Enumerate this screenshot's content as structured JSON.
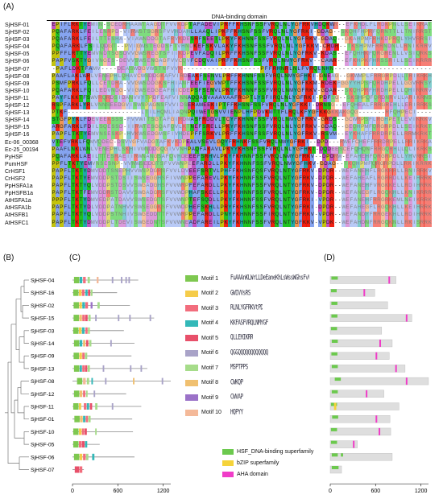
{
  "panels": {
    "a": "(A)",
    "b": "(B)",
    "c": "(C)",
    "d": "(D)"
  },
  "alignment": {
    "title": "DNA-binding domain",
    "names": [
      "SjHSF-01",
      "SjHSF-02",
      "SjHSF-03",
      "SjHSF-04",
      "SjHSF-05",
      "SjHSF-06",
      "SjHSF-07",
      "SjHSF-08",
      "SjHSF-09",
      "SjHSF-10",
      "SjHSF-11",
      "SjHSF-12",
      "SjHSF-13",
      "SjHSF-14",
      "SjHSF-15",
      "SjHSF-16",
      "Ec-06_00368",
      "Ec-25_00194",
      "PyHSF",
      "PumHSF",
      "CrHSF1",
      "CrHSF2",
      "PpHSFA1a",
      "PpHSFB1a",
      "AtHSFA1a",
      "AtHSFA1b",
      "AtHSFB1",
      "AtHSFC1"
    ],
    "sequences": [
      "EPIFLRKTYEMIN-SCEDRHAAWTAAGDTFVVKDPTAFADEVIPRFFKHSNFSSFVRQLNLYGFRKVHDQKWR--EFKHDLFLRDKPNLLSEIKRAT",
      "PQAFARKLFEILENRPD-VIRWSTSGRSFVVHDAHLLAAQLIPKFFKHSNFSSFVRQLNLYGFRKI-GDAG--SKQHFHPRFQRNTTLLTNIRRST",
      "PQAFARKLFEILTTESHA-VIAWNDDGTAFRVKDESRFSEETLPKYFKHNNFSSFVRQLNLYGFRKV-GDAQ--GKAHPMFRHKDPRQLYHVRRSI",
      "PQAFARKLFSILQDGT--PVIGWSTEGDSFTVHNDKEFSKVLAKYFKHSNFSSFVRQLNLYGFKKV-CRDR--TKSHPMFRRNDNLLRNIKRRV",
      "PPFFLRTTYEMVNDTSGSDVVGWSREGTSFIIKDPEVFADQILPRFFKHSNFSSFVRQLNLYGFRKV-KDAS--EFQHHKFQRGRENLLVSIQRKS",
      "PAPFVSKTYGIVNGES-DEVVSWSENGAGFVVCQVFCDQVAIPRFFKHSNFSSFVRQLNMYGFRKV--CAWR--EFKHPKFHRSSRILLSEIKRRR",
      "-PAFLDKTFAMV----DEASWDGVWSTNFVVK-------------------PFFRHNRLNLFVRQLNHN------------------------",
      "PAAFLAKLWRLVENEPHLQHAVCWSDDGKAFVIRDEAKFSENVLPRFFKHNNFSSFVRQLNMYGFHKI-GNEAG--GKWMPLFRRGRPDLLTRIKRKH",
      "PSMFPRKLFQLLCETDRA-VVGWSDDGKSFHIANFEEFIEGVMPTFFKHSNFSSFVRQLNLYGFKKM-RDEKFGGYYHPSFQRDHPELLGGVRRSY",
      "PQAFARKLFQILEDVNDG-VIGWSEDGEAFHICDEPSFSENVLPKYFKHNNFSSFVRQLNMYGFRKV-GDAR--SKQHPRFHRDHPELLQHIRRRV",
      "PAYFLKKTFSWVRQRDSIDANVVYTPDFEAFVINNAQQASVAAAVAAFRGPTLYSFIRQLNLYGFRKI-PDFSG--SKSHPQFQRDNRVLLARIKRNS",
      "RSPFARKLYRLVNNSEEDGVISWSPAGNSFVVIDSERAMEEKIPTFFKHSNFSSFVRQLNLYGFKKI-DRNSG--EFQHEALFRRGREHLLERIRRKS",
      "PTKF-------------------LTILHQMLIAQNPQIWETGSVVIENPLHFPDVKMTTFLRQLKFYGFKKGKKAKGQG-------RFQHPECI----",
      "STGFPYKLFDEVEEKSSS-FVVWITSGTAFGIRDMASFRDDVLTCYFKHNNFSSFVRQLNMYGFRKV-GRDS--GCWRPSFLRGHPETLEVIKRKV",
      "ARGFARKLFDILSQESSD-IIRWTESGQAFQVLKTNEFSRELLPKYFKHSNFSSFVRQLNLYGFRKV-GDAQ--GEQHPMFQRGRPDLLSEIKRKT",
      "PAPFLTKTYEMVNSESKP-HVKWSEDGMSFIVHDEPFFSRKVLPRFFKHSNFSSFVRQLNLYGFRKV-RSVM--EYKHAFFRRDRPELLRRMKRKT",
      "VTEFVRKLFQMVQDEC-DSVVGFVADGTAFKVKDPEALVSEVLGQYFRHNKFSSFVRQLNMYGFRKI--DPD---RWEFCHEFFRRDRPELLRRIKRKA",
      "PAAFLNKLWNLVENEPHLSKHIVWNDDGQGIVVNHPAQFAKAVLPKYYKHSNFSSFVRQLNLYGFHKT-DQDEESCEFQHQNFRRGQRHLLQLIKRKS",
      "PQAFARKLAEILTTESRAEIIRWNANGSAFQVHDEEEFSRHVLPKYFKHNNFSSFVRQLNMYGFRKV--DPDRW-EFAHEHFQRGRPDLLYHVRRSI",
      "PPFLTKTYEMVNSESNP-VVNWSEDGTSFVVWNPEEFARDLLPKYFKHNNFSSFVRQLNMYGFHKV-GDAG--TKQHPMFQRGRPDLLRKIKRRK",
      "PAPFLTKTYDMVDDTSNEPHVVWSPDGRSFVVLDVEEFSRTVLPHFFKHSNFQSFVRQLNTYGFRKV-DPDR--WEFANEHFLRGKRRLLRNIRRKV",
      "PAPFLTKTYEMVDDPSTDSIISWSEGGHSFIVWNPPEFAREVLPKYFKHNNFSSFVRQLNTYGFRKV-DPDR--WEFAHEAFLRGRRDLLKEIHRRK",
      "PAPFLTKTYQLVDDPSTDSVVSWGADGHSFVVWRPFEFARDLLPKYFKHNNFSSFVRQLNTYGFRKV-DPDR--WEFANEHFVRGKKELLRDIHRRK",
      "PAPFLTKTFEMVDDRSTDAVVSWGADGRSFVVWDPHAFSKELLPKYFKHNNFSSFVRQLNTYGFRKV-DPDR--WEFANEGFLRGQKHLLKNIKRRR",
      "PPPFLTKTYDMVEDPATDAVVSWSEDGTSFVVWNPTEFSQDLLPKYFKHNNFSSFVRQLNTYGFRKI-VPDR--WEFANEHFRRGRKEMLNEIKRRK",
      "PAPFLTKTYDLVDDPATNHVVSWSEGGKSFVVWDPHEFSKHLLPRYFKHSNFSSFVRQLNTYGFRKI-DPDR--WEFAHEGFLRGQKHLLKEIHRRK",
      "PAPFLTKTYQLVDDPSTNHIVSWGEDDTTFVVWRPPEFARDLLPNYFKHNNFSSFIRQLNTYGFRKV-VPDR--WEFANDYFRRGEKHLLRDIHRRK",
      "PAPFLTKTYDMVDDPLTDEVISWGEDNTSFVVWNEADFAREILPKYFKHNNFSSFVRQLNTYGFKKV-VPDK--WEFAHDNFRRGQKNLLRKISRRK"
    ]
  },
  "tree": {
    "leaves": [
      "SjHSF-04",
      "SjHSF-16",
      "SjHSF-02",
      "SjHSF-15",
      "SjHSF-03",
      "SjHSF-14",
      "SjHSF-09",
      "SjHSF-13",
      "SjHSF-08",
      "SjHSF-12",
      "SjHSF-11",
      "SjHSF-01",
      "SjHSF-10",
      "SjHSF-05",
      "SjHSF-06",
      "SjHSF-07"
    ]
  },
  "motif_axis": {
    "ticks": [
      "0",
      "600",
      "1200"
    ]
  },
  "domain_axis": {
    "ticks": [
      "0",
      "600",
      "1200"
    ]
  },
  "motif_legend": [
    {
      "label": "Motif 1",
      "color": "#7ec850",
      "logo": "FuAAAnKLWrLLDeEaneKhLsWssWGhsFvVkDp"
    },
    {
      "label": "Motif 2",
      "color": "#f5cc4a",
      "logo": "GWIVVsRS"
    },
    {
      "label": "Motif 3",
      "color": "#f26d7d",
      "logo": "RLNLYGFRKVtPD"
    },
    {
      "label": "Motif 4",
      "color": "#33b8b8",
      "logo": "KKFASFVRQLNMYGF"
    },
    {
      "label": "Motif 5",
      "color": "#e8506a",
      "logo": "QLLEHIKRR"
    },
    {
      "label": "Motif 6",
      "color": "#a9a3c8",
      "logo": "QGGQQQQQQQQQQQQ"
    },
    {
      "label": "Motif 7",
      "color": "#a6dc8a",
      "logo": "MSPTPPS"
    },
    {
      "label": "Motif 8",
      "color": "#f0c070",
      "logo": "CWKQP"
    },
    {
      "label": "Motif 9",
      "color": "#9b72c8",
      "logo": "CWVAP"
    },
    {
      "label": "Motif 10",
      "color": "#f4b999",
      "logo": "HQPYY"
    }
  ],
  "domain_legend": [
    {
      "label": "HSF_DNA-binding superfamily",
      "color": "#6cc94e"
    },
    {
      "label": "bZIP superfamily",
      "color": "#f5d33a"
    },
    {
      "label": "AHA domain",
      "color": "#f03cc8"
    }
  ],
  "proteins": [
    {
      "name": "SjHSF-04",
      "length": 870,
      "motifs": [
        [
          20,
          90,
          1
        ],
        [
          95,
          130,
          4
        ],
        [
          140,
          175,
          3
        ],
        [
          200,
          230,
          7
        ],
        [
          320,
          345,
          10
        ],
        [
          520,
          540,
          6
        ],
        [
          640,
          660,
          6
        ],
        [
          700,
          720,
          6
        ],
        [
          740,
          760,
          6
        ]
      ],
      "domains": [
        [
          15,
          100,
          "HSF_DNA-binding superfamily"
        ],
        [
          770,
          790,
          "AHA domain"
        ]
      ]
    },
    {
      "name": "SjHSF-16",
      "length": 590,
      "motifs": [
        [
          10,
          80,
          1
        ],
        [
          85,
          120,
          2
        ],
        [
          125,
          160,
          3
        ],
        [
          170,
          200,
          4
        ],
        [
          205,
          235,
          5
        ],
        [
          240,
          265,
          7
        ]
      ],
      "domains": [
        [
          10,
          85,
          "HSF_DNA-binding superfamily"
        ],
        [
          440,
          460,
          "AHA domain"
        ]
      ]
    },
    {
      "name": "SjHSF-02",
      "length": 760,
      "motifs": [
        [
          15,
          85,
          1
        ],
        [
          90,
          125,
          2
        ],
        [
          130,
          165,
          4
        ],
        [
          170,
          205,
          3
        ],
        [
          240,
          265,
          9
        ],
        [
          330,
          360,
          7
        ]
      ],
      "domains": [
        [
          15,
          95,
          "HSF_DNA-binding superfamily"
        ]
      ]
    },
    {
      "name": "SjHSF-15",
      "length": 1080,
      "motifs": [
        [
          15,
          85,
          1
        ],
        [
          90,
          125,
          8
        ],
        [
          130,
          165,
          3
        ],
        [
          170,
          200,
          5
        ],
        [
          210,
          240,
          7
        ],
        [
          300,
          320,
          6
        ],
        [
          600,
          620,
          6
        ],
        [
          750,
          770,
          6
        ],
        [
          1020,
          1040,
          6
        ]
      ],
      "domains": [
        [
          15,
          95,
          "HSF_DNA-binding superfamily"
        ],
        [
          1000,
          1020,
          "AHA domain"
        ]
      ]
    },
    {
      "name": "SjHSF-03",
      "length": 680,
      "motifs": [
        [
          10,
          80,
          1
        ],
        [
          85,
          120,
          2
        ],
        [
          125,
          160,
          4
        ],
        [
          170,
          200,
          3
        ],
        [
          205,
          230,
          7
        ]
      ],
      "domains": [
        [
          10,
          90,
          "HSF_DNA-binding superfamily"
        ]
      ]
    },
    {
      "name": "SjHSF-14",
      "length": 820,
      "motifs": [
        [
          20,
          90,
          1
        ],
        [
          95,
          130,
          4
        ],
        [
          140,
          170,
          8
        ],
        [
          180,
          210,
          5
        ],
        [
          220,
          250,
          7
        ],
        [
          500,
          520,
          6
        ]
      ],
      "domains": [
        [
          20,
          100,
          "HSF_DNA-binding superfamily"
        ],
        [
          650,
          670,
          "AHA domain"
        ]
      ]
    },
    {
      "name": "SjHSF-09",
      "length": 780,
      "motifs": [
        [
          15,
          85,
          1
        ],
        [
          90,
          125,
          2
        ],
        [
          130,
          160,
          3
        ],
        [
          165,
          195,
          7
        ]
      ],
      "domains": [
        [
          15,
          95,
          "HSF_DNA-binding superfamily"
        ],
        [
          600,
          620,
          "AHA domain"
        ]
      ]
    },
    {
      "name": "SjHSF-13",
      "length": 990,
      "motifs": [
        [
          20,
          90,
          1
        ],
        [
          95,
          125,
          4
        ],
        [
          130,
          160,
          3
        ],
        [
          165,
          195,
          5
        ],
        [
          200,
          230,
          7
        ],
        [
          400,
          420,
          6
        ],
        [
          760,
          780,
          6
        ],
        [
          900,
          920,
          6
        ]
      ],
      "domains": [
        [
          20,
          100,
          "HSF_DNA-binding superfamily"
        ],
        [
          860,
          880,
          "AHA domain"
        ]
      ]
    },
    {
      "name": "SjHSF-08",
      "length": 1300,
      "motifs": [
        [
          60,
          130,
          1
        ],
        [
          140,
          175,
          10
        ],
        [
          190,
          220,
          7
        ],
        [
          250,
          270,
          4
        ],
        [
          430,
          450,
          6
        ],
        [
          800,
          820,
          8
        ],
        [
          1180,
          1200,
          6
        ]
      ],
      "domains": [
        [
          60,
          140,
          "HSF_DNA-binding superfamily"
        ],
        [
          1000,
          1020,
          "AHA domain"
        ]
      ]
    },
    {
      "name": "SjHSF-12",
      "length": 710,
      "motifs": [
        [
          20,
          90,
          1
        ],
        [
          95,
          130,
          8
        ],
        [
          140,
          170,
          3
        ],
        [
          180,
          200,
          7
        ],
        [
          280,
          300,
          6
        ]
      ],
      "domains": [
        [
          20,
          100,
          "HSF_DNA-binding superfamily"
        ],
        [
          470,
          490,
          "AHA domain"
        ]
      ]
    },
    {
      "name": "SjHSF-11",
      "length": 910,
      "motifs": [
        [
          10,
          80,
          1
        ],
        [
          85,
          115,
          2
        ],
        [
          150,
          185,
          3
        ],
        [
          190,
          220,
          4
        ],
        [
          230,
          260,
          5
        ],
        [
          300,
          330,
          7
        ],
        [
          520,
          540,
          6
        ]
      ],
      "domains": [
        [
          10,
          90,
          "HSF_DNA-binding superfamily"
        ],
        [
          50,
          80,
          "bZIP superfamily"
        ]
      ]
    },
    {
      "name": "SjHSF-01",
      "length": 790,
      "motifs": [
        [
          25,
          95,
          1
        ],
        [
          100,
          135,
          8
        ],
        [
          140,
          170,
          4
        ],
        [
          175,
          205,
          3
        ],
        [
          210,
          240,
          7
        ]
      ],
      "domains": [
        [
          25,
          105,
          "HSF_DNA-binding superfamily"
        ],
        [
          600,
          620,
          "AHA domain"
        ]
      ]
    },
    {
      "name": "SjHSF-10",
      "length": 800,
      "motifs": [
        [
          10,
          80,
          1
        ],
        [
          85,
          120,
          2
        ],
        [
          125,
          155,
          3
        ],
        [
          160,
          190,
          5
        ],
        [
          300,
          320,
          7
        ]
      ],
      "domains": [
        [
          10,
          90,
          "HSF_DNA-binding superfamily"
        ],
        [
          640,
          660,
          "AHA domain"
        ]
      ]
    },
    {
      "name": "SjHSF-05",
      "length": 360,
      "motifs": [
        [
          10,
          80,
          1
        ],
        [
          85,
          120,
          3
        ],
        [
          125,
          160,
          5
        ],
        [
          165,
          195,
          4
        ]
      ],
      "domains": [
        [
          10,
          90,
          "HSF_DNA-binding superfamily"
        ],
        [
          300,
          320,
          "AHA domain"
        ]
      ]
    },
    {
      "name": "SjHSF-06",
      "length": 820,
      "motifs": [
        [
          20,
          90,
          1
        ],
        [
          95,
          130,
          2
        ],
        [
          140,
          175,
          3
        ],
        [
          180,
          210,
          7
        ],
        [
          260,
          290,
          4
        ]
      ],
      "domains": [
        [
          20,
          100,
          "HSF_DNA-binding superfamily"
        ],
        [
          140,
          170,
          "HSF_DNA-binding superfamily"
        ]
      ]
    },
    {
      "name": "SjHSF-07",
      "length": 150,
      "motifs": [
        [
          30,
          90,
          5
        ],
        [
          95,
          130,
          3
        ]
      ],
      "domains": [
        [
          20,
          110,
          "HSF_DNA-binding superfamily"
        ]
      ]
    }
  ]
}
